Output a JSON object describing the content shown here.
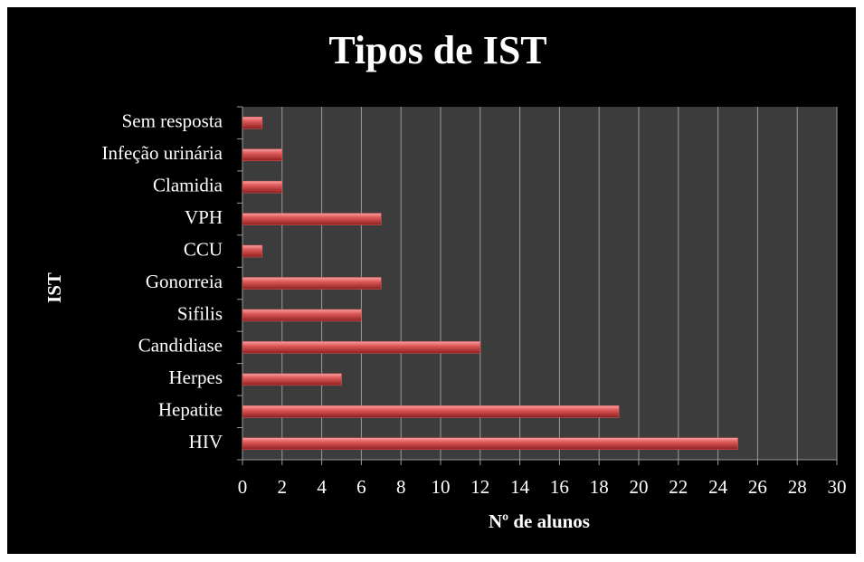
{
  "chart_data": {
    "type": "barh",
    "title": "Tipos de IST",
    "xlabel": "Nº de alunos",
    "ylabel": "IST",
    "categories": [
      "HIV",
      "Hepatite",
      "Herpes",
      "Candidiase",
      "Sifilis",
      "Gonorreia",
      "CCU",
      "VPH",
      "Clamidia",
      "Infeção urinária",
      "Sem resposta"
    ],
    "values": [
      25,
      19,
      5,
      12,
      6,
      7,
      1,
      7,
      2,
      2,
      1
    ],
    "color": "#e05a5a",
    "xlim": [
      0,
      30
    ],
    "xticks": [
      0,
      2,
      4,
      6,
      8,
      10,
      12,
      14,
      16,
      18,
      20,
      22,
      24,
      26,
      28,
      30
    ],
    "grid": true
  }
}
